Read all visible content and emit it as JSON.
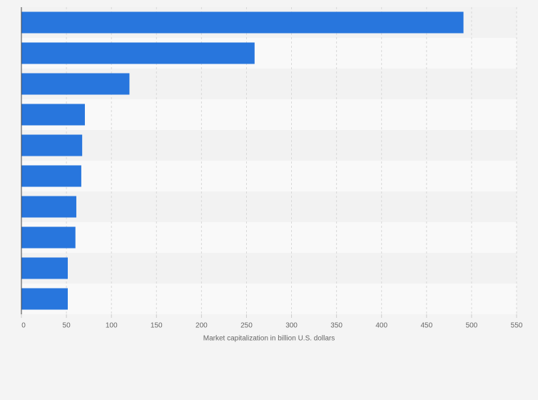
{
  "chart_data": {
    "type": "hbar",
    "categories": [
      null,
      null,
      null,
      null,
      null,
      null,
      null,
      null,
      null,
      null
    ],
    "values": [
      491,
      259,
      120,
      70.5,
      67.5,
      66.5,
      61,
      60,
      51.5,
      51.5
    ],
    "color": "#2876dd",
    "xlabel": "Market capitalization in billion U.S. dollars",
    "xlim": [
      0,
      550
    ],
    "xticks": [
      0,
      50,
      100,
      150,
      200,
      250,
      300,
      350,
      400,
      450,
      500,
      550
    ],
    "grid": true
  }
}
